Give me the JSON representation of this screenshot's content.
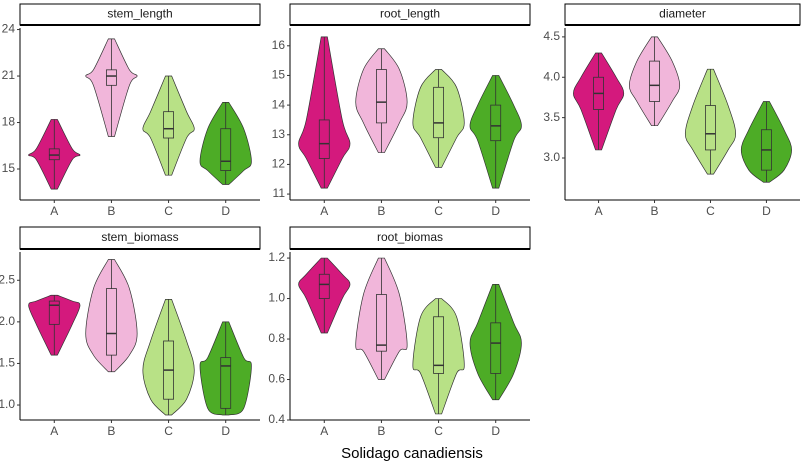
{
  "chart_data": [
    {
      "type": "violin",
      "title": "stem_length",
      "categories": [
        "A",
        "B",
        "C",
        "D"
      ],
      "colors": [
        "#d4197d",
        "#f1b6da",
        "#b8e186",
        "#4dac26"
      ],
      "min": [
        13.7,
        17.1,
        14.6,
        14.0
      ],
      "q1": [
        15.6,
        20.4,
        17.0,
        14.9
      ],
      "median": [
        15.9,
        21.0,
        17.6,
        15.5
      ],
      "q3": [
        16.3,
        21.4,
        18.7,
        17.6
      ],
      "max": [
        18.2,
        23.4,
        21.0,
        19.3
      ],
      "ylim": [
        13,
        24.1
      ],
      "yticks": [
        15,
        18,
        21,
        24
      ]
    },
    {
      "type": "violin",
      "title": "root_length",
      "categories": [
        "A",
        "B",
        "C",
        "D"
      ],
      "colors": [
        "#d4197d",
        "#f1b6da",
        "#b8e186",
        "#4dac26"
      ],
      "min": [
        11.2,
        12.4,
        11.9,
        11.2
      ],
      "q1": [
        12.2,
        13.4,
        12.9,
        12.8
      ],
      "median": [
        12.7,
        14.1,
        13.4,
        13.3
      ],
      "q3": [
        13.5,
        15.2,
        14.6,
        14.0
      ],
      "max": [
        16.3,
        15.9,
        15.2,
        15.0
      ],
      "ylim": [
        10.8,
        16.6
      ],
      "yticks": [
        11,
        12,
        13,
        14,
        15,
        16
      ]
    },
    {
      "type": "violin",
      "title": "diameter",
      "categories": [
        "A",
        "B",
        "C",
        "D"
      ],
      "colors": [
        "#d4197d",
        "#f1b6da",
        "#b8e186",
        "#4dac26"
      ],
      "min": [
        3.1,
        3.4,
        2.8,
        2.7
      ],
      "q1": [
        3.6,
        3.7,
        3.1,
        2.85
      ],
      "median": [
        3.8,
        3.9,
        3.3,
        3.1
      ],
      "q3": [
        4.0,
        4.2,
        3.65,
        3.35
      ],
      "max": [
        4.3,
        4.5,
        4.1,
        3.7
      ],
      "ylim": [
        2.48,
        4.61
      ],
      "yticks": [
        {
          "value": 3,
          "label": "3.0"
        },
        3.5,
        {
          "value": 4,
          "label": "4.0"
        },
        4.5
      ]
    },
    {
      "type": "violin",
      "title": "stem_biomass",
      "categories": [
        "A",
        "B",
        "C",
        "D"
      ],
      "colors": [
        "#d4197d",
        "#f1b6da",
        "#b8e186",
        "#4dac26"
      ],
      "min": [
        1.6,
        1.4,
        0.88,
        0.88
      ],
      "q1": [
        1.97,
        1.6,
        1.07,
        0.96
      ],
      "median": [
        2.2,
        1.86,
        1.42,
        1.47
      ],
      "q3": [
        2.25,
        2.4,
        1.77,
        1.57
      ],
      "max": [
        2.32,
        2.75,
        2.27,
        2.0
      ],
      "ylim": [
        0.82,
        2.84
      ],
      "yticks": [
        {
          "value": 1,
          "label": "1.0"
        },
        1.5,
        {
          "value": 2,
          "label": "2.0"
        },
        2.5
      ]
    },
    {
      "type": "violin",
      "title": "root_biomas",
      "categories": [
        "A",
        "B",
        "C",
        "D"
      ],
      "colors": [
        "#d4197d",
        "#f1b6da",
        "#b8e186",
        "#4dac26"
      ],
      "min": [
        0.83,
        0.6,
        0.43,
        0.5
      ],
      "q1": [
        1.0,
        0.74,
        0.63,
        0.63
      ],
      "median": [
        1.07,
        0.77,
        0.67,
        0.78
      ],
      "q3": [
        1.12,
        1.02,
        0.91,
        0.88
      ],
      "max": [
        1.2,
        1.2,
        1.0,
        1.07
      ],
      "ylim": [
        0.4,
        1.23
      ],
      "yticks": [
        0.4,
        0.6,
        0.8,
        {
          "value": 1,
          "label": "1.0"
        },
        1.2
      ]
    }
  ],
  "xlabel": "Solidago canadiensis"
}
